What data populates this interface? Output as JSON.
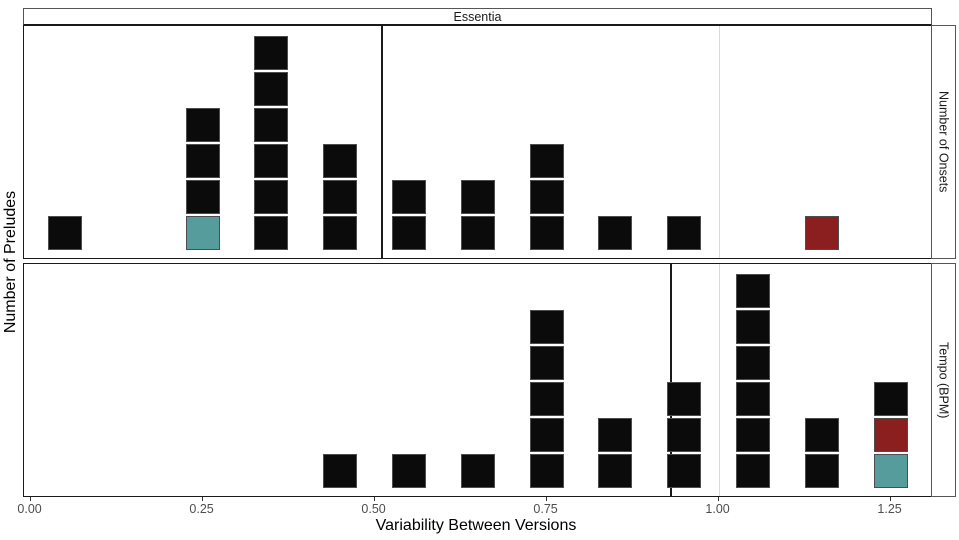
{
  "chart_data": {
    "type": "bar",
    "subtype": "stacked-unit-histogram",
    "facet_column_title": "Essentia",
    "xlabel": "Variability Between Versions",
    "ylabel": "Number of Preludes",
    "square_unit": "1 square = 1 prelude",
    "grid": "off",
    "legend": "none",
    "xlim": [
      -0.03,
      1.31
    ],
    "ylim": [
      0,
      6.5
    ],
    "bin_width": 0.1,
    "x_ticks": [
      {
        "value": 0.0,
        "label": "0.00"
      },
      {
        "value": 0.25,
        "label": "0.25"
      },
      {
        "value": 0.5,
        "label": "0.50"
      },
      {
        "value": 0.75,
        "label": "0.75"
      },
      {
        "value": 1.0,
        "label": "1.00"
      },
      {
        "value": 1.25,
        "label": "1.25"
      }
    ],
    "colors": {
      "black": "#0b0b0b",
      "teal": "#579c9d",
      "red": "#8b1e1e",
      "mean_line": "#1a1a1a",
      "reference_line": "#d9d9d9"
    },
    "panels": [
      {
        "strip_label": "Number of Onsets",
        "mean_line_x": 0.51,
        "reference_line_x": 1.0,
        "bars": [
          {
            "x": 0.05,
            "count": 1,
            "segments": [
              "black"
            ]
          },
          {
            "x": 0.25,
            "count": 4,
            "segments": [
              "teal",
              "black",
              "black",
              "black"
            ]
          },
          {
            "x": 0.35,
            "count": 6,
            "segments": [
              "black",
              "black",
              "black",
              "black",
              "black",
              "black"
            ]
          },
          {
            "x": 0.45,
            "count": 3,
            "segments": [
              "black",
              "black",
              "black"
            ]
          },
          {
            "x": 0.55,
            "count": 2,
            "segments": [
              "black",
              "black"
            ]
          },
          {
            "x": 0.65,
            "count": 2,
            "segments": [
              "black",
              "black"
            ]
          },
          {
            "x": 0.75,
            "count": 3,
            "segments": [
              "black",
              "black",
              "black"
            ]
          },
          {
            "x": 0.85,
            "count": 1,
            "segments": [
              "black"
            ]
          },
          {
            "x": 0.95,
            "count": 1,
            "segments": [
              "black"
            ]
          },
          {
            "x": 1.15,
            "count": 1,
            "segments": [
              "red"
            ]
          }
        ]
      },
      {
        "strip_label": "Tempo (BPM)",
        "mean_line_x": 0.93,
        "reference_line_x": 1.0,
        "bars": [
          {
            "x": 0.45,
            "count": 1,
            "segments": [
              "black"
            ]
          },
          {
            "x": 0.55,
            "count": 1,
            "segments": [
              "black"
            ]
          },
          {
            "x": 0.65,
            "count": 1,
            "segments": [
              "black"
            ]
          },
          {
            "x": 0.75,
            "count": 5,
            "segments": [
              "black",
              "black",
              "black",
              "black",
              "black"
            ]
          },
          {
            "x": 0.85,
            "count": 2,
            "segments": [
              "black",
              "black"
            ]
          },
          {
            "x": 0.95,
            "count": 3,
            "segments": [
              "black",
              "black",
              "black"
            ]
          },
          {
            "x": 1.05,
            "count": 6,
            "segments": [
              "black",
              "black",
              "black",
              "black",
              "black",
              "black"
            ]
          },
          {
            "x": 1.15,
            "count": 2,
            "segments": [
              "black",
              "black"
            ]
          },
          {
            "x": 1.25,
            "count": 3,
            "segments": [
              "teal",
              "red",
              "black"
            ]
          }
        ]
      }
    ]
  }
}
